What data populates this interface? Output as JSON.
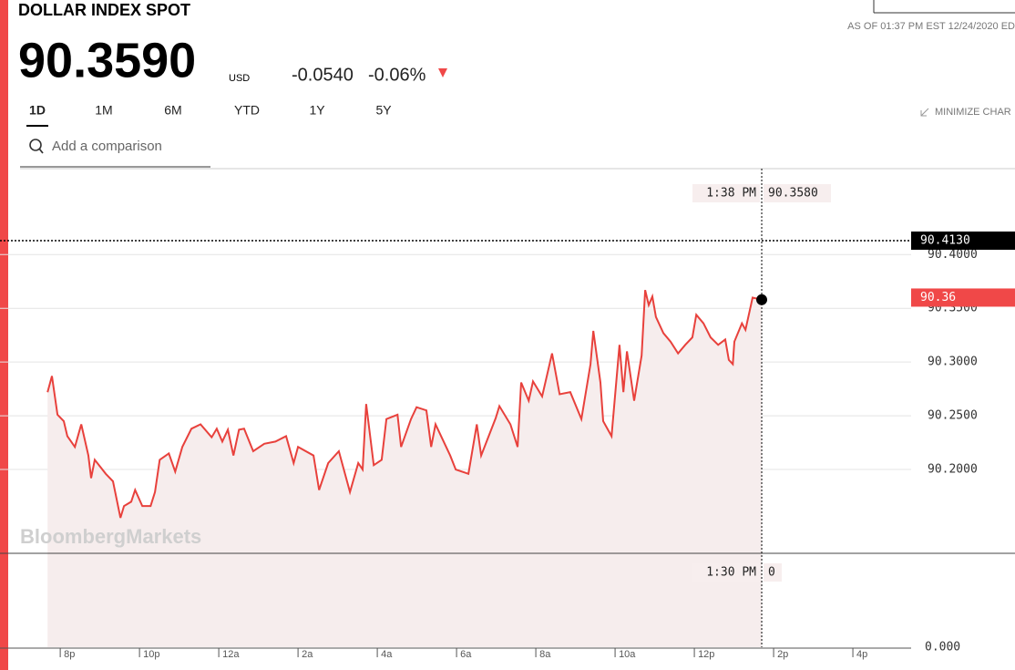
{
  "header": {
    "title": "DOLLAR INDEX SPOT",
    "price": "90.3590",
    "currency": "USD",
    "change": "-0.0540",
    "change_percent": "-0.06%",
    "as_of": "AS OF 01:37 PM EST 12/24/2020 ED"
  },
  "tabs": {
    "items": [
      "1D",
      "1M",
      "6M",
      "YTD",
      "1Y",
      "5Y"
    ],
    "selected": "1D",
    "minimize": "MINIMIZE CHAR"
  },
  "search": {
    "placeholder": "Add a comparison"
  },
  "watermark": "BloombergMarkets",
  "chart_data": {
    "type": "line",
    "color": "#e8413c",
    "area_color": "#f6eded",
    "x": [
      19.68,
      19.79,
      19.93,
      20.09,
      20.18,
      20.37,
      20.53,
      20.71,
      20.78,
      20.87,
      21.15,
      21.33,
      21.52,
      21.61,
      21.79,
      21.89,
      22.07,
      22.28,
      22.39,
      22.51,
      22.74,
      22.9,
      23.08,
      23.31,
      23.54,
      23.82,
      23.95,
      24.09,
      24.23,
      24.37,
      24.51,
      24.64,
      24.87,
      25.15,
      25.43,
      25.7,
      25.89,
      26.0,
      26.39,
      26.53,
      26.76,
      27.03,
      27.31,
      27.52,
      27.63,
      27.72,
      27.91,
      28.11,
      28.23,
      28.51,
      28.6,
      28.85,
      28.99,
      29.24,
      29.36,
      29.47,
      29.84,
      29.98,
      30.3,
      30.51,
      30.62,
      30.99,
      31.08,
      31.36,
      31.54,
      31.63,
      31.82,
      31.93,
      32.16,
      32.41,
      32.6,
      32.87,
      33.15,
      33.38,
      33.45,
      33.63,
      33.7,
      33.91,
      34.11,
      34.21,
      34.3,
      34.48,
      34.67,
      34.76,
      34.85,
      34.94,
      35.03,
      35.22,
      35.4,
      35.59,
      35.77,
      35.95,
      36.05,
      36.23,
      36.41,
      36.6,
      36.78,
      36.87,
      36.97,
      37.01,
      37.2,
      37.29,
      37.47,
      37.7
    ],
    "values": [
      90.272,
      90.287,
      90.251,
      90.245,
      90.231,
      90.221,
      90.242,
      90.213,
      90.192,
      90.209,
      90.196,
      90.189,
      90.155,
      90.166,
      90.17,
      90.181,
      90.166,
      90.166,
      90.179,
      90.209,
      90.215,
      90.198,
      90.221,
      90.238,
      90.242,
      90.23,
      90.238,
      90.226,
      90.237,
      90.213,
      90.237,
      90.238,
      90.217,
      90.224,
      90.226,
      90.231,
      90.206,
      90.221,
      90.213,
      90.181,
      90.206,
      90.217,
      90.179,
      90.206,
      90.2,
      90.261,
      90.204,
      90.209,
      90.247,
      90.251,
      90.221,
      90.247,
      90.258,
      90.255,
      90.221,
      90.242,
      90.213,
      90.2,
      90.196,
      90.242,
      90.213,
      90.248,
      90.259,
      90.242,
      90.221,
      90.281,
      90.264,
      90.282,
      90.268,
      90.308,
      90.27,
      90.272,
      90.247,
      90.298,
      90.329,
      90.281,
      90.245,
      90.231,
      90.316,
      90.272,
      90.31,
      90.264,
      90.306,
      90.367,
      90.353,
      90.361,
      90.342,
      90.327,
      90.319,
      90.308,
      90.316,
      90.323,
      90.344,
      90.336,
      90.323,
      90.316,
      90.321,
      90.302,
      90.298,
      90.319,
      90.336,
      90.33,
      90.36,
      90.358
    ],
    "xlim": [
      18.48,
      41.47
    ],
    "xticks": [
      {
        "value": 20,
        "label": "8p"
      },
      {
        "value": 22,
        "label": "10p"
      },
      {
        "value": 24,
        "label": "12a"
      },
      {
        "value": 26,
        "label": "2a"
      },
      {
        "value": 28,
        "label": "4a"
      },
      {
        "value": 30,
        "label": "6a"
      },
      {
        "value": 32,
        "label": "8a"
      },
      {
        "value": 34,
        "label": "10a"
      },
      {
        "value": 36,
        "label": "12p"
      },
      {
        "value": 38,
        "label": "2p"
      },
      {
        "value": 40,
        "label": "4p"
      }
    ],
    "ylim": [
      90.122,
      90.48
    ],
    "yticks": [
      {
        "value": 90.4,
        "label": "90.4000"
      },
      {
        "value": 90.35,
        "label": "90.3500"
      },
      {
        "value": 90.3,
        "label": "90.3000"
      },
      {
        "value": 90.25,
        "label": "90.2500"
      },
      {
        "value": 90.2,
        "label": "90.2000"
      }
    ],
    "grid": true,
    "reference_lines": [
      {
        "value": 90.413,
        "label": "90.4130",
        "color": "#000000",
        "style": "dotted"
      },
      {
        "value": 90.36,
        "color": "#f04848",
        "style": "none"
      }
    ],
    "crosshair": {
      "time_label": "1:38 PM",
      "value": 90.358,
      "value_label": "90.3580"
    },
    "lower_panel": {
      "yticks": [
        {
          "value": 0,
          "label": "0.000"
        }
      ],
      "crosshair": {
        "time_label": "1:30 PM",
        "value": 0
      }
    }
  }
}
